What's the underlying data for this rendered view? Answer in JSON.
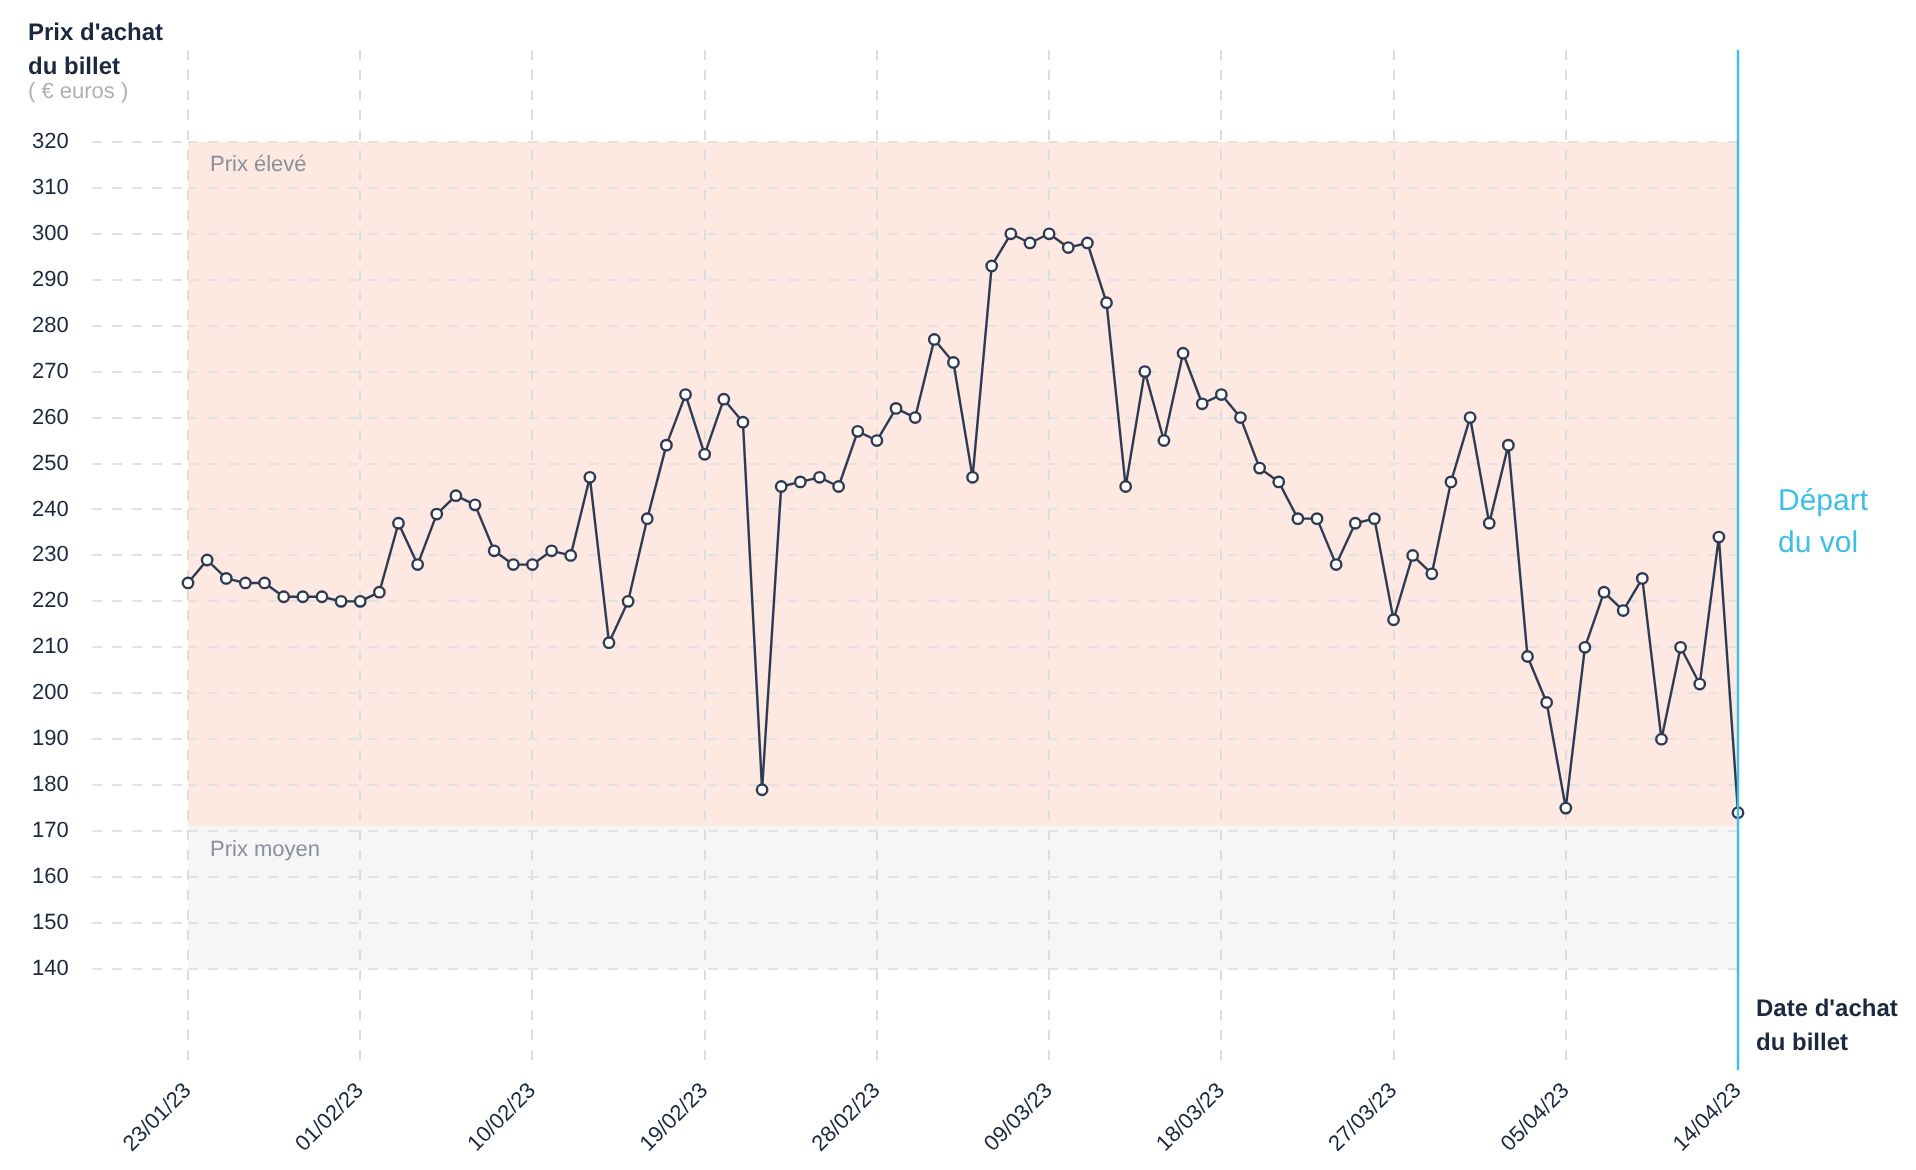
{
  "chart_data": {
    "type": "line",
    "ylabel": "Prix d'achat du billet",
    "xlabel": "Date d'achat du billet",
    "annotations": [
      "( € euros )"
    ],
    "x": [
      "--01-23",
      "--01-24",
      "--01-25",
      "--01-26",
      "--01-27",
      "--01-28",
      "--01-29",
      "--01-30",
      "--01-31",
      "--02-01",
      "--02-02",
      "--02-03",
      "--02-04",
      "--02-05",
      "--02-06",
      "--02-07",
      "--02-08",
      "--02-09",
      "--02-10",
      "--02-11",
      "--02-12",
      "--02-13",
      "--02-14",
      "--02-15",
      "--02-16",
      "--02-17",
      "--02-18",
      "--02-19",
      "--02-20",
      "--02-21",
      "--02-22",
      "--02-23",
      "--02-24",
      "--02-25",
      "--02-26",
      "--02-27",
      "--02-28",
      "--03-01",
      "--03-02",
      "--03-03",
      "--03-04",
      "--03-05",
      "--03-06",
      "--03-07",
      "--03-08",
      "--03-09",
      "--03-10",
      "--03-11",
      "--03-12",
      "--03-13",
      "--03-14",
      "--03-15",
      "--03-16",
      "--03-17",
      "--03-18",
      "--03-19",
      "--03-20",
      "--03-21",
      "--03-22",
      "--03-23",
      "--03-24",
      "--03-25",
      "--03-26",
      "--03-27",
      "--03-28",
      "--03-29",
      "--03-30",
      "--03-31",
      "--04-01",
      "--04-02",
      "--04-03",
      "--04-04",
      "--04-05",
      "--04-06",
      "--04-07",
      "--04-08",
      "--04-09",
      "--04-10",
      "--04-11",
      "--04-12",
      "--04-13",
      "--04-14"
    ],
    "series": [
      {
        "color": "#2e3a52",
        "values": [
          224,
          229,
          225,
          224,
          224,
          221,
          221,
          221,
          220,
          220,
          222,
          237,
          228,
          239,
          243,
          241,
          231,
          228,
          228,
          231,
          230,
          247,
          211,
          220,
          238,
          254,
          265,
          252,
          264,
          259,
          179,
          245,
          246,
          247,
          245,
          257,
          255,
          262,
          260,
          277,
          272,
          247,
          293,
          300,
          298,
          300,
          297,
          298,
          285,
          245,
          270,
          255,
          274,
          263,
          265,
          260,
          249,
          246,
          238,
          238,
          228,
          237,
          238,
          216,
          230,
          226,
          246,
          260,
          237,
          254,
          208,
          198,
          175,
          210,
          222,
          218,
          225,
          190,
          210,
          202,
          234,
          174
        ]
      }
    ],
    "marker": "circle",
    "line_style": "solid",
    "xlim": [
      "--01-23",
      "--04-14"
    ],
    "xticks": [
      {
        "value": "--01-23",
        "label": "23/01/23"
      },
      {
        "value": "--02-01",
        "label": "01/02/23"
      },
      {
        "value": "--02-10",
        "label": "10/02/23"
      },
      {
        "value": "--02-19",
        "label": "19/02/23"
      },
      {
        "value": "--02-28",
        "label": "28/02/23"
      },
      {
        "value": "--03-09",
        "label": "09/03/23"
      },
      {
        "value": "--03-18",
        "label": "18/03/23"
      },
      {
        "value": "--03-27",
        "label": "27/03/23"
      },
      {
        "value": "--04-05",
        "label": "05/04/23"
      },
      {
        "value": "--04-14",
        "label": "14/04/23"
      }
    ],
    "ylim": [
      118,
      340
    ],
    "yticks": [
      140,
      150,
      160,
      170,
      180,
      190,
      200,
      210,
      220,
      230,
      240,
      250,
      260,
      270,
      280,
      290,
      300,
      310,
      320
    ],
    "grid": true,
    "bands": [
      {
        "axis": "y",
        "from": 171,
        "to": 320,
        "label": "Prix élevé",
        "color": "#fde8e2"
      },
      {
        "axis": "y",
        "from": 140,
        "to": 171,
        "label": "Prix moyen",
        "color": "#f6f6f6"
      }
    ],
    "ref_lines": [
      {
        "axis": "x",
        "value": "--04-14",
        "label": "Départ du vol",
        "color": "#3dbfe6",
        "line_style": "solid"
      }
    ]
  }
}
